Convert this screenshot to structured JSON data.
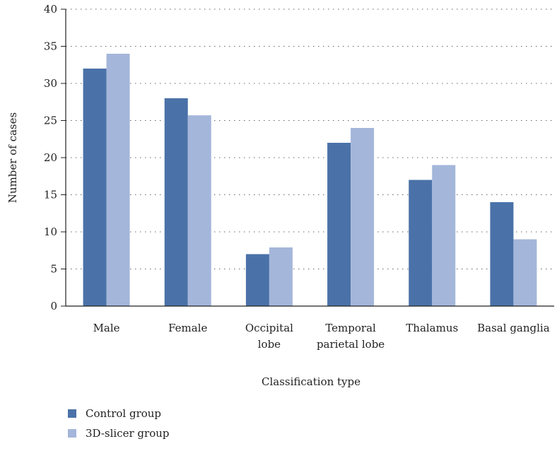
{
  "chart_data": {
    "type": "bar",
    "title": "",
    "xlabel": "Classification type",
    "ylabel": "Number of cases",
    "ylim": [
      0,
      40
    ],
    "yticks": [
      0,
      5,
      10,
      15,
      20,
      25,
      30,
      35,
      40
    ],
    "grid": "horizontal dotted",
    "legend_position": "bottom-left",
    "categories": [
      [
        "Male"
      ],
      [
        "Female"
      ],
      [
        "Occipital",
        "lobe"
      ],
      [
        "Temporal",
        "parietal lobe"
      ],
      [
        "Thalamus"
      ],
      [
        "Basal ganglia"
      ]
    ],
    "series": [
      {
        "name": "Control group",
        "color": "#4a72a8",
        "values": [
          32,
          28,
          7,
          22,
          17,
          14
        ]
      },
      {
        "name": "3D-slicer group",
        "color": "#a4b6da",
        "values": [
          34,
          25.7,
          7.9,
          24,
          19,
          9
        ]
      }
    ]
  }
}
